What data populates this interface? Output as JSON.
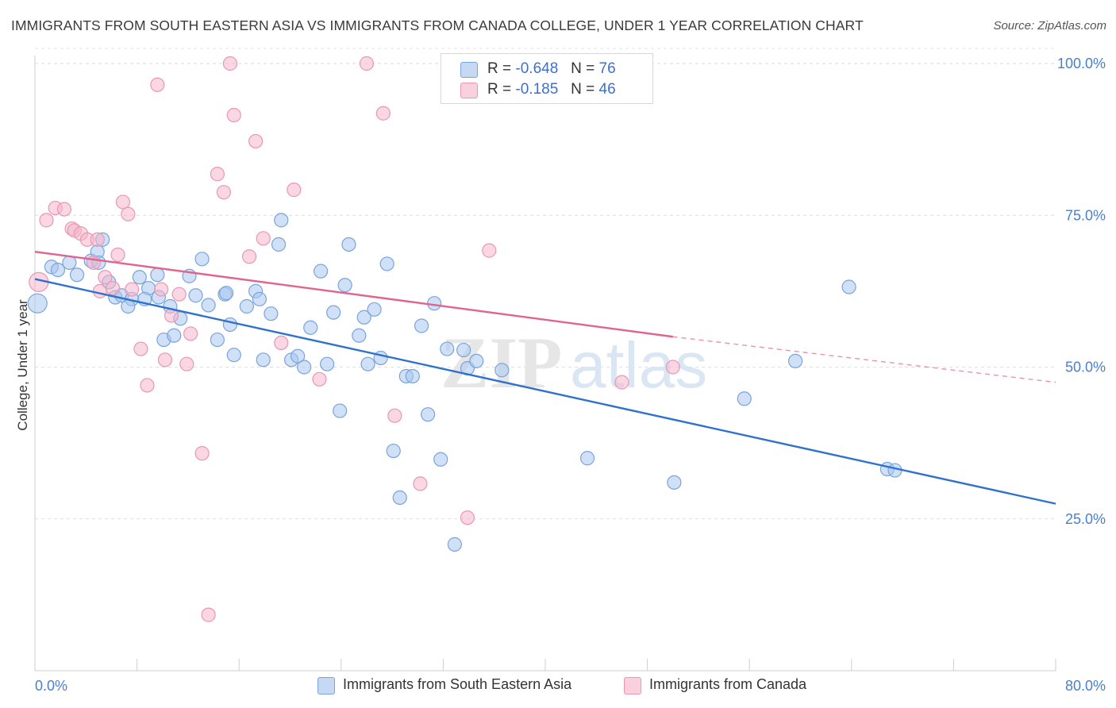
{
  "title": "IMMIGRANTS FROM SOUTH EASTERN ASIA VS IMMIGRANTS FROM CANADA COLLEGE, UNDER 1 YEAR CORRELATION CHART",
  "source": "Source: ZipAtlas.com",
  "watermark": {
    "zip": "ZIP",
    "atlas": "atlas"
  },
  "legend": {
    "r_label": "R =",
    "n_label": "N =",
    "rows": [
      {
        "r": "-0.648",
        "n": "76",
        "color": "#a8c6f0"
      },
      {
        "r": "-0.185",
        "n": "46",
        "color": "#f6b6cb"
      }
    ]
  },
  "bottom_legend": [
    {
      "label": "Immigrants from South Eastern Asia",
      "color": "#a8c6f0"
    },
    {
      "label": "Immigrants from Canada",
      "color": "#f6b6cb"
    }
  ],
  "chart_data": {
    "type": "scatter",
    "title": "IMMIGRANTS FROM SOUTH EASTERN ASIA VS IMMIGRANTS FROM CANADA COLLEGE, UNDER 1 YEAR CORRELATION CHART",
    "xlabel": "",
    "ylabel": "College, Under 1 year",
    "xlim": [
      0,
      80
    ],
    "ylim": [
      0,
      105
    ],
    "x_tick_labels": [
      "0.0%",
      "80.0%"
    ],
    "y_ticks": [
      25,
      50,
      75,
      100
    ],
    "y_tick_labels": [
      "25.0%",
      "50.0%",
      "75.0%",
      "100.0%"
    ],
    "grid": true,
    "legend_position": "top-center",
    "series": [
      {
        "name": "Immigrants from South Eastern Asia",
        "color": "#a8c6f0",
        "stroke": "#7aa4dc",
        "trend_color": "#2f72cc",
        "trend": {
          "x0": 0,
          "y0": 64.5,
          "x1": 80,
          "y1": 27.5
        },
        "points": [
          [
            0.2,
            60.5
          ],
          [
            1.3,
            66.5
          ],
          [
            1.8,
            66.0
          ],
          [
            2.7,
            67.2
          ],
          [
            3.3,
            65.2
          ],
          [
            4.4,
            67.5
          ],
          [
            5.3,
            71.0
          ],
          [
            4.9,
            69.0
          ],
          [
            5.8,
            64.0
          ],
          [
            6.3,
            61.5
          ],
          [
            6.8,
            61.8
          ],
          [
            7.6,
            61.2
          ],
          [
            7.3,
            60.0
          ],
          [
            8.2,
            64.8
          ],
          [
            8.9,
            63.0
          ],
          [
            8.6,
            61.2
          ],
          [
            9.6,
            65.2
          ],
          [
            10.1,
            54.5
          ],
          [
            10.9,
            55.2
          ],
          [
            10.6,
            60.0
          ],
          [
            11.4,
            58.0
          ],
          [
            12.1,
            65.0
          ],
          [
            12.6,
            61.8
          ],
          [
            13.1,
            67.8
          ],
          [
            13.6,
            60.2
          ],
          [
            14.3,
            54.5
          ],
          [
            14.9,
            62.0
          ],
          [
            15.3,
            57.0
          ],
          [
            15.6,
            52.0
          ],
          [
            16.6,
            60.0
          ],
          [
            17.3,
            62.5
          ],
          [
            17.6,
            61.2
          ],
          [
            17.9,
            51.2
          ],
          [
            18.5,
            58.8
          ],
          [
            19.1,
            70.2
          ],
          [
            19.3,
            74.2
          ],
          [
            20.1,
            51.2
          ],
          [
            20.6,
            51.8
          ],
          [
            21.1,
            50.0
          ],
          [
            21.6,
            56.5
          ],
          [
            22.4,
            65.8
          ],
          [
            22.9,
            50.5
          ],
          [
            23.4,
            59.0
          ],
          [
            23.9,
            42.8
          ],
          [
            24.3,
            63.5
          ],
          [
            24.6,
            70.2
          ],
          [
            25.4,
            55.2
          ],
          [
            25.8,
            58.2
          ],
          [
            26.1,
            50.5
          ],
          [
            26.6,
            59.5
          ],
          [
            27.1,
            51.5
          ],
          [
            27.6,
            67.0
          ],
          [
            28.1,
            36.2
          ],
          [
            28.6,
            28.5
          ],
          [
            29.1,
            48.5
          ],
          [
            29.6,
            48.5
          ],
          [
            30.3,
            56.8
          ],
          [
            30.8,
            42.2
          ],
          [
            31.3,
            60.5
          ],
          [
            31.8,
            34.8
          ],
          [
            32.3,
            53.0
          ],
          [
            32.9,
            20.8
          ],
          [
            33.6,
            52.8
          ],
          [
            33.9,
            49.8
          ],
          [
            34.6,
            51.0
          ],
          [
            36.6,
            49.5
          ],
          [
            43.3,
            35.0
          ],
          [
            50.1,
            31.0
          ],
          [
            55.6,
            44.8
          ],
          [
            59.6,
            51.0
          ],
          [
            63.8,
            63.2
          ],
          [
            66.8,
            33.2
          ],
          [
            67.4,
            33.0
          ],
          [
            15.0,
            62.2
          ],
          [
            5.0,
            67.2
          ],
          [
            9.7,
            61.5
          ]
        ]
      },
      {
        "name": "Immigrants from Canada",
        "color": "#f6b6cb",
        "stroke": "#e997b2",
        "trend_color": "#e0648f",
        "trend": {
          "x0": 0,
          "y0": 69.0,
          "x1": 50,
          "y1": 55.0
        },
        "trend_dashed": {
          "x0": 50,
          "y0": 55.0,
          "x1": 80,
          "y1": 47.5
        },
        "points": [
          [
            0.3,
            64.0
          ],
          [
            0.9,
            74.2
          ],
          [
            1.6,
            76.2
          ],
          [
            2.3,
            76.0
          ],
          [
            2.9,
            72.8
          ],
          [
            3.1,
            72.5
          ],
          [
            3.6,
            72.0
          ],
          [
            4.1,
            71.0
          ],
          [
            4.6,
            67.2
          ],
          [
            4.9,
            71.0
          ],
          [
            5.5,
            64.8
          ],
          [
            5.1,
            62.5
          ],
          [
            6.1,
            63.0
          ],
          [
            6.5,
            68.5
          ],
          [
            6.9,
            77.2
          ],
          [
            7.3,
            75.2
          ],
          [
            7.6,
            62.8
          ],
          [
            8.3,
            53.0
          ],
          [
            8.8,
            47.0
          ],
          [
            9.6,
            96.5
          ],
          [
            9.9,
            62.8
          ],
          [
            10.2,
            51.2
          ],
          [
            10.7,
            58.5
          ],
          [
            11.3,
            62.0
          ],
          [
            11.9,
            50.5
          ],
          [
            12.2,
            55.5
          ],
          [
            13.1,
            35.8
          ],
          [
            13.6,
            9.2
          ],
          [
            14.3,
            81.8
          ],
          [
            14.8,
            78.8
          ],
          [
            15.3,
            100.0
          ],
          [
            15.6,
            91.5
          ],
          [
            16.8,
            68.2
          ],
          [
            17.3,
            87.2
          ],
          [
            17.9,
            71.2
          ],
          [
            19.3,
            54.0
          ],
          [
            20.3,
            79.2
          ],
          [
            22.3,
            48.0
          ],
          [
            26.0,
            100.0
          ],
          [
            27.3,
            91.8
          ],
          [
            28.2,
            42.0
          ],
          [
            30.2,
            30.8
          ],
          [
            33.9,
            25.2
          ],
          [
            35.6,
            69.2
          ],
          [
            46.0,
            47.5
          ],
          [
            50.0,
            50.0
          ]
        ]
      }
    ]
  }
}
